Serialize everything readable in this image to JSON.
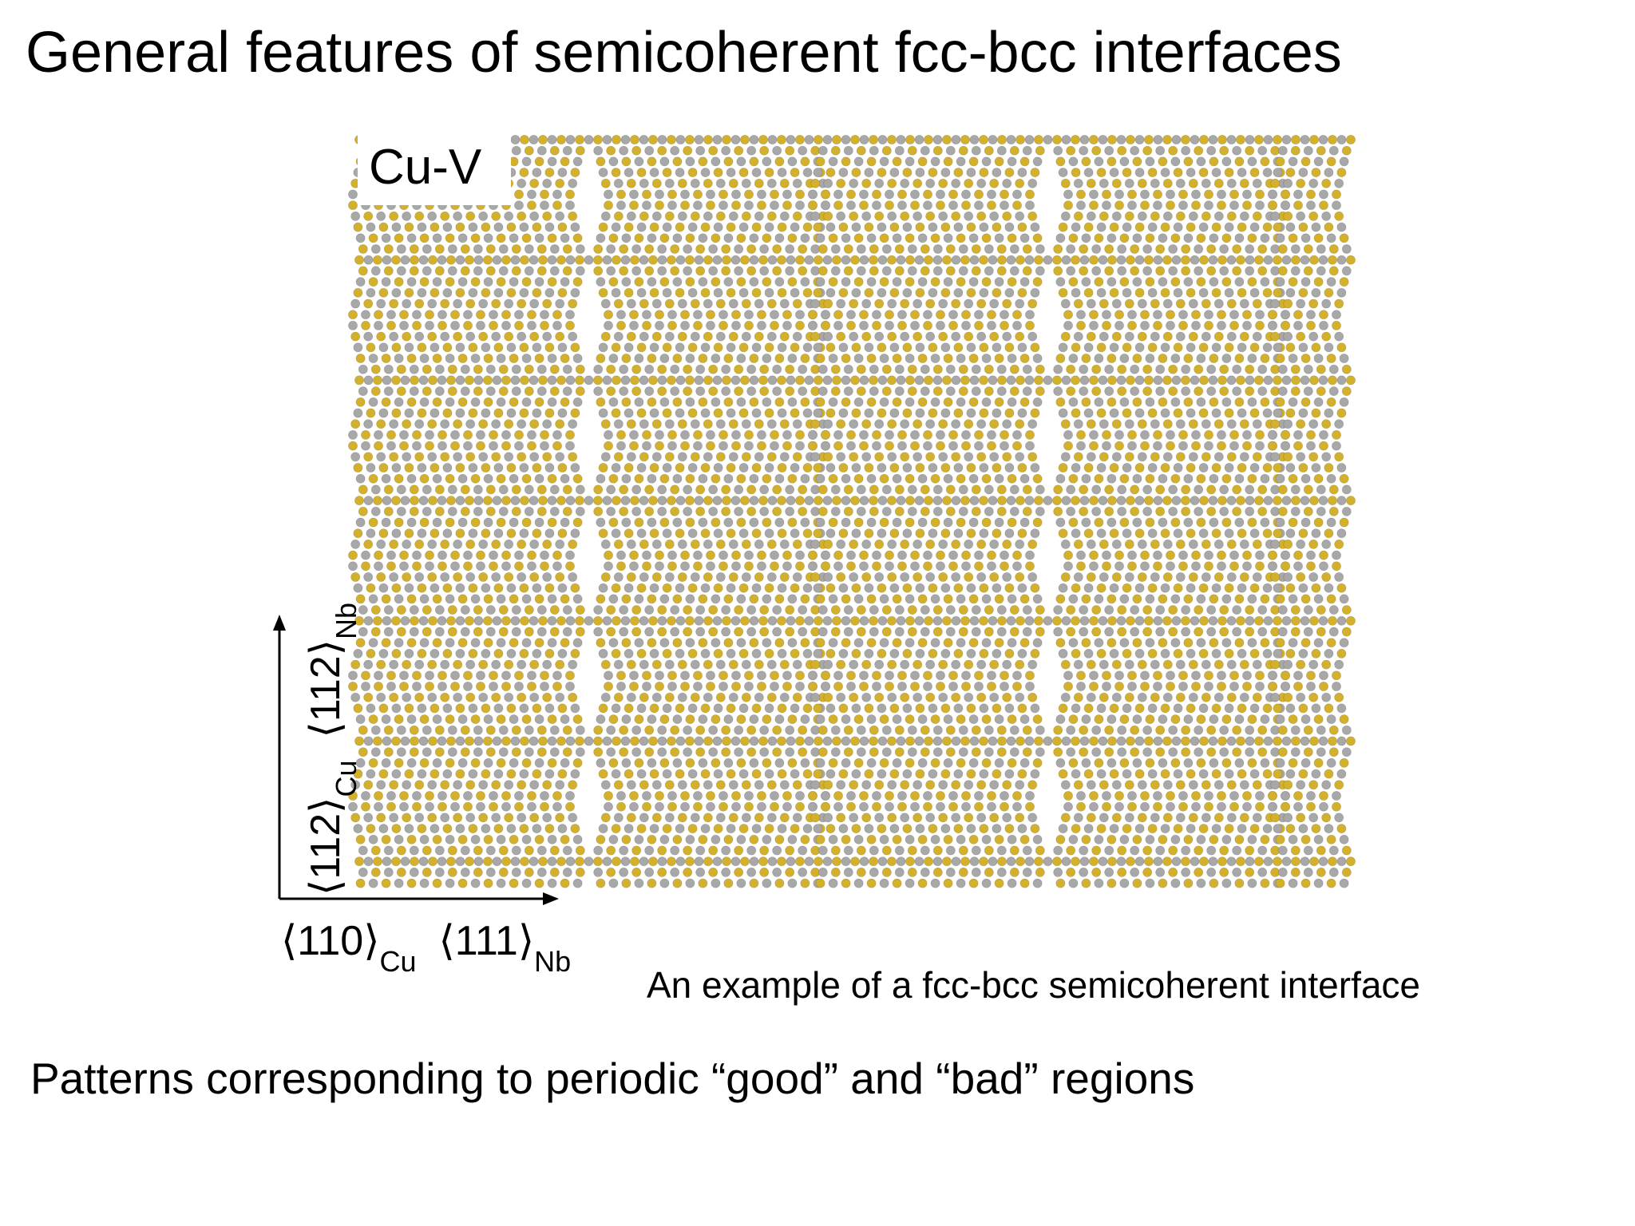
{
  "title": "General features of semicoherent fcc-bcc interfaces",
  "figure": {
    "label": "Cu-V",
    "y_axis": [
      {
        "text": "⟨112⟩",
        "sub": "Cu"
      },
      {
        "text": "⟨112⟩",
        "sub": "Nb"
      }
    ],
    "x_axis": [
      {
        "text": "⟨110⟩",
        "sub": "Cu"
      },
      {
        "text": "⟨111⟩",
        "sub": "Nb"
      }
    ],
    "caption": "An example of a fcc-bcc semicoherent interface"
  },
  "body": "Patterns corresponding to periodic “good” and “bad” regions"
}
